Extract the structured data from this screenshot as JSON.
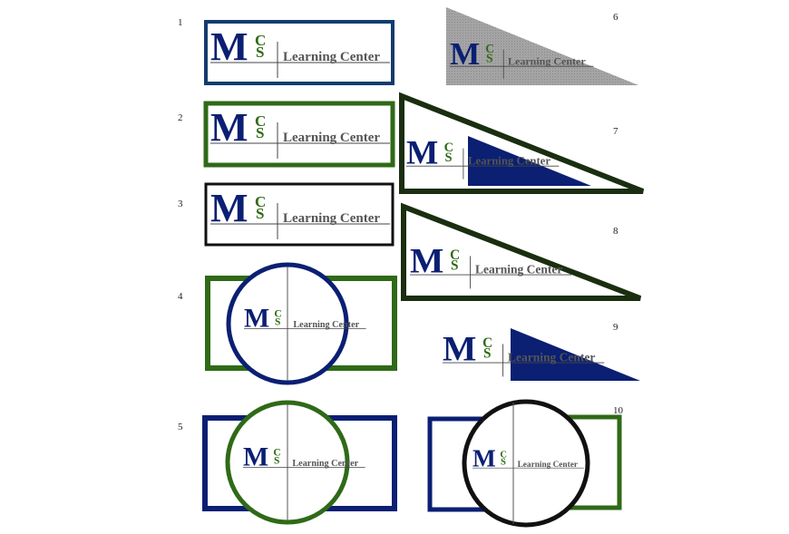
{
  "logo": {
    "letter_m": "M",
    "letter_c": "C",
    "letter_s": "S",
    "tagline": "Learning Center"
  },
  "colors": {
    "navy": "#0b1f73",
    "green": "#2f6a17",
    "black": "#111111",
    "dark_green": "#1a2e10",
    "blue_border": "#133c6e",
    "gray": "#9a9a9a"
  },
  "variants": [
    {
      "number": "1"
    },
    {
      "number": "2"
    },
    {
      "number": "3"
    },
    {
      "number": "4"
    },
    {
      "number": "5"
    },
    {
      "number": "6"
    },
    {
      "number": "7"
    },
    {
      "number": "8"
    },
    {
      "number": "9"
    },
    {
      "number": "10"
    }
  ]
}
